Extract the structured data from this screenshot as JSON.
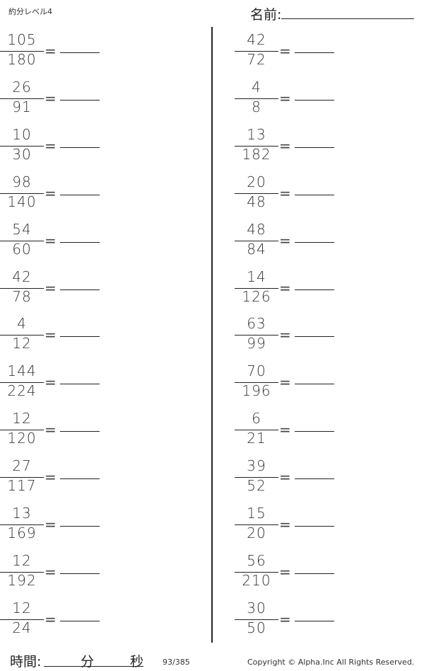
{
  "header": {
    "title": "約分レベル4",
    "name_label": "名前:"
  },
  "left_problems": [
    {
      "numerator": "105",
      "denominator": "180"
    },
    {
      "numerator": "26",
      "denominator": "91"
    },
    {
      "numerator": "10",
      "denominator": "30"
    },
    {
      "numerator": "98",
      "denominator": "140"
    },
    {
      "numerator": "54",
      "denominator": "60"
    },
    {
      "numerator": "42",
      "denominator": "78"
    },
    {
      "numerator": "4",
      "denominator": "12"
    },
    {
      "numerator": "144",
      "denominator": "224"
    },
    {
      "numerator": "12",
      "denominator": "120"
    },
    {
      "numerator": "27",
      "denominator": "117"
    },
    {
      "numerator": "13",
      "denominator": "169"
    },
    {
      "numerator": "12",
      "denominator": "192"
    },
    {
      "numerator": "12",
      "denominator": "24"
    }
  ],
  "right_problems": [
    {
      "numerator": "42",
      "denominator": "72"
    },
    {
      "numerator": "4",
      "denominator": "8"
    },
    {
      "numerator": "13",
      "denominator": "182"
    },
    {
      "numerator": "20",
      "denominator": "48"
    },
    {
      "numerator": "48",
      "denominator": "84"
    },
    {
      "numerator": "14",
      "denominator": "126"
    },
    {
      "numerator": "63",
      "denominator": "99"
    },
    {
      "numerator": "70",
      "denominator": "196"
    },
    {
      "numerator": "6",
      "denominator": "21"
    },
    {
      "numerator": "39",
      "denominator": "52"
    },
    {
      "numerator": "15",
      "denominator": "20"
    },
    {
      "numerator": "56",
      "denominator": "210"
    },
    {
      "numerator": "30",
      "denominator": "50"
    }
  ],
  "equals_sign": "=",
  "footer": {
    "time_label": "時間:",
    "minutes_label": "分",
    "seconds_label": "秒",
    "page": "93/385",
    "copyright": "Copyright ©  Alpha.Inc All Rights Reserved."
  }
}
